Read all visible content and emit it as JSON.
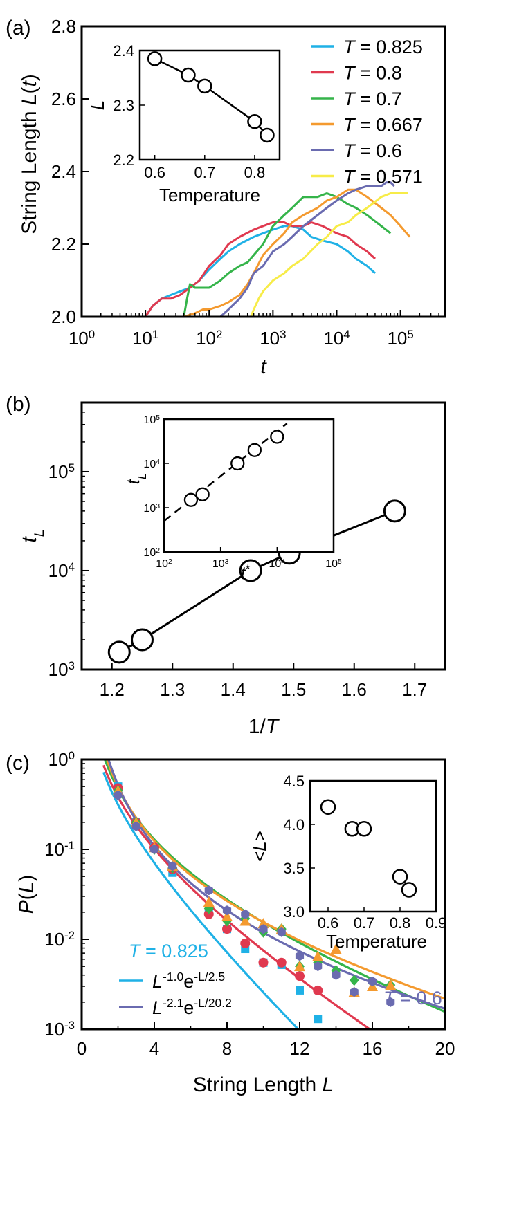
{
  "chart_data": [
    {
      "panel": "(a)",
      "type": "line",
      "xlabel": "t",
      "ylabel": "String Length L(t)",
      "xscale": "log",
      "xlim": [
        1,
        500000
      ],
      "ylim": [
        2.0,
        2.8
      ],
      "xticks": [
        {
          "v": 1,
          "base": "10",
          "exp": "0"
        },
        {
          "v": 10,
          "base": "10",
          "exp": "1"
        },
        {
          "v": 100,
          "base": "10",
          "exp": "2"
        },
        {
          "v": 1000,
          "base": "10",
          "exp": "3"
        },
        {
          "v": 10000,
          "base": "10",
          "exp": "4"
        },
        {
          "v": 100000,
          "base": "10",
          "exp": "5"
        }
      ],
      "yticks": [
        {
          "v": 2.0,
          "label": "2.0"
        },
        {
          "v": 2.2,
          "label": "2.2"
        },
        {
          "v": 2.4,
          "label": "2.4"
        },
        {
          "v": 2.6,
          "label": "2.6"
        },
        {
          "v": 2.8,
          "label": "2.8"
        }
      ],
      "legend": {
        "placement": "top-right",
        "prefix": "T",
        "eq": " = "
      },
      "series": [
        {
          "name": "0.825",
          "color": "#1fb1e6",
          "x": [
            1,
            10,
            13,
            18,
            25,
            35,
            50,
            70,
            100,
            150,
            200,
            300,
            500,
            700,
            1000,
            1500,
            2000,
            3000,
            4000,
            6000,
            10000,
            15000,
            20000,
            30000,
            40000
          ],
          "y": [
            2.0,
            2.0,
            2.03,
            2.05,
            2.06,
            2.07,
            2.08,
            2.1,
            2.13,
            2.16,
            2.18,
            2.2,
            2.22,
            2.23,
            2.24,
            2.25,
            2.25,
            2.24,
            2.22,
            2.21,
            2.2,
            2.18,
            2.16,
            2.14,
            2.12
          ]
        },
        {
          "name": "0.8",
          "color": "#e0394f",
          "x": [
            1,
            10,
            13,
            18,
            25,
            35,
            50,
            70,
            100,
            150,
            200,
            300,
            500,
            700,
            1000,
            1500,
            2000,
            3000,
            4000,
            6000,
            10000,
            15000,
            20000,
            30000,
            40000
          ],
          "y": [
            2.0,
            2.0,
            2.03,
            2.05,
            2.05,
            2.06,
            2.08,
            2.1,
            2.14,
            2.17,
            2.2,
            2.22,
            2.24,
            2.25,
            2.26,
            2.26,
            2.25,
            2.25,
            2.26,
            2.25,
            2.23,
            2.22,
            2.2,
            2.18,
            2.16
          ]
        },
        {
          "name": "0.7",
          "color": "#35b44a",
          "x": [
            1,
            40,
            45,
            50,
            60,
            80,
            100,
            150,
            200,
            300,
            400,
            500,
            700,
            1000,
            1500,
            2000,
            3000,
            5000,
            7000,
            10000,
            15000,
            20000,
            30000,
            50000,
            70000
          ],
          "y": [
            2.0,
            2.0,
            2.05,
            2.09,
            2.08,
            2.08,
            2.08,
            2.1,
            2.12,
            2.14,
            2.15,
            2.17,
            2.2,
            2.25,
            2.28,
            2.3,
            2.33,
            2.33,
            2.34,
            2.33,
            2.31,
            2.3,
            2.28,
            2.25,
            2.23
          ]
        },
        {
          "name": "0.667",
          "color": "#f49a2f",
          "x": [
            1,
            40,
            60,
            80,
            100,
            150,
            200,
            300,
            400,
            500,
            700,
            1000,
            1500,
            2000,
            3000,
            5000,
            7000,
            10000,
            15000,
            20000,
            30000,
            50000,
            70000,
            100000,
            140000
          ],
          "y": [
            2.0,
            2.0,
            2.01,
            2.02,
            2.02,
            2.03,
            2.04,
            2.06,
            2.09,
            2.12,
            2.17,
            2.2,
            2.23,
            2.26,
            2.28,
            2.3,
            2.32,
            2.33,
            2.35,
            2.35,
            2.33,
            2.3,
            2.28,
            2.25,
            2.22
          ]
        },
        {
          "name": "0.6",
          "color": "#6a6bb0",
          "x": [
            1,
            150,
            200,
            300,
            400,
            500,
            700,
            1000,
            1500,
            2000,
            3000,
            5000,
            7000,
            10000,
            15000,
            20000,
            30000,
            50000,
            60000,
            70000,
            80000
          ],
          "y": [
            2.0,
            2.0,
            2.02,
            2.05,
            2.08,
            2.12,
            2.14,
            2.18,
            2.2,
            2.22,
            2.25,
            2.28,
            2.3,
            2.32,
            2.34,
            2.35,
            2.36,
            2.36,
            2.37,
            2.37,
            2.36
          ]
        },
        {
          "name": "0.571",
          "color": "#f7ec48",
          "x": [
            1,
            450,
            500,
            600,
            700,
            1000,
            1500,
            2000,
            3000,
            5000,
            7000,
            10000,
            15000,
            20000,
            30000,
            50000,
            70000,
            100000,
            130000
          ],
          "y": [
            2.0,
            2.0,
            2.02,
            2.05,
            2.07,
            2.1,
            2.12,
            2.14,
            2.16,
            2.2,
            2.22,
            2.25,
            2.26,
            2.28,
            2.3,
            2.33,
            2.34,
            2.34,
            2.34
          ]
        }
      ],
      "inset": {
        "type": "scatter",
        "xlabel": "Temperature",
        "ylabel": "L",
        "xlim": [
          0.57,
          0.85
        ],
        "ylim": [
          2.2,
          2.4
        ],
        "xticks": [
          {
            "v": 0.6,
            "label": "0.6"
          },
          {
            "v": 0.7,
            "label": "0.7"
          },
          {
            "v": 0.8,
            "label": "0.8"
          }
        ],
        "yticks": [
          {
            "v": 2.2,
            "label": "2.2"
          },
          {
            "v": 2.3,
            "label": "2.3"
          },
          {
            "v": 2.4,
            "label": "2.4"
          }
        ],
        "x": [
          0.6,
          0.667,
          0.7,
          0.8,
          0.825
        ],
        "y": [
          2.385,
          2.355,
          2.335,
          2.27,
          2.245
        ]
      }
    },
    {
      "panel": "(b)",
      "type": "scatter",
      "xlabel": "1/T",
      "ylabel": "t_L",
      "yscale": "log",
      "xlim": [
        1.15,
        1.75
      ],
      "ylim": [
        1000,
        500000
      ],
      "xticks": [
        {
          "v": 1.2,
          "label": "1.2"
        },
        {
          "v": 1.3,
          "label": "1.3"
        },
        {
          "v": 1.4,
          "label": "1.4"
        },
        {
          "v": 1.5,
          "label": "1.5"
        },
        {
          "v": 1.6,
          "label": "1.6"
        },
        {
          "v": 1.7,
          "label": "1.7"
        }
      ],
      "yticks": [
        {
          "v": 1000,
          "base": "10",
          "exp": "3"
        },
        {
          "v": 10000,
          "base": "10",
          "exp": "4"
        },
        {
          "v": 100000,
          "base": "10",
          "exp": "5"
        }
      ],
      "x": [
        1.212,
        1.25,
        1.429,
        1.493,
        1.667
      ],
      "y": [
        1500,
        2000,
        10000,
        15000,
        40000
      ],
      "inset": {
        "type": "scatter",
        "xlabel": "t*",
        "ylabel": "t_L",
        "xscale": "log",
        "yscale": "log",
        "xlim": [
          100,
          100000
        ],
        "ylim": [
          100,
          100000
        ],
        "xticks": [
          {
            "v": 100,
            "base": "10",
            "exp": "2"
          },
          {
            "v": 1000,
            "base": "10",
            "exp": "3"
          },
          {
            "v": 10000,
            "base": "10",
            "exp": "4"
          },
          {
            "v": 100000,
            "base": "10",
            "exp": "5"
          }
        ],
        "yticks": [
          {
            "v": 100,
            "base": "10",
            "exp": "2"
          },
          {
            "v": 1000,
            "base": "10",
            "exp": "3"
          },
          {
            "v": 10000,
            "base": "10",
            "exp": "4"
          },
          {
            "v": 100000,
            "base": "10",
            "exp": "5"
          }
        ],
        "x": [
          300,
          480,
          2000,
          4000,
          10000
        ],
        "y": [
          1500,
          2000,
          10000,
          20000,
          40000
        ],
        "fit_x": [
          100,
          15000
        ],
        "fit_y": [
          500,
          80000
        ]
      }
    },
    {
      "panel": "(c)",
      "type": "scatter",
      "xlabel": "String Length L",
      "ylabel": "P(L)",
      "yscale": "log",
      "xlim": [
        0,
        20
      ],
      "ylim": [
        0.001,
        1
      ],
      "xticks": [
        {
          "v": 0,
          "label": "0"
        },
        {
          "v": 4,
          "label": "4"
        },
        {
          "v": 8,
          "label": "8"
        },
        {
          "v": 12,
          "label": "12"
        },
        {
          "v": 16,
          "label": "16"
        },
        {
          "v": 20,
          "label": "20"
        }
      ],
      "yticks": [
        {
          "v": 0.001,
          "base": "10",
          "exp": "-3"
        },
        {
          "v": 0.01,
          "base": "10",
          "exp": "-2"
        },
        {
          "v": 0.1,
          "base": "10",
          "exp": "-1"
        },
        {
          "v": 1,
          "base": "10",
          "exp": "0"
        }
      ],
      "series": [
        {
          "T": 0.825,
          "color": "#1fb1e6",
          "marker": "square",
          "x": [
            2,
            3,
            4,
            5,
            7,
            8,
            9,
            10,
            11,
            12,
            13
          ],
          "y": [
            0.5,
            0.2,
            0.105,
            0.055,
            0.02,
            0.013,
            0.0078,
            0.0055,
            0.0052,
            0.0027,
            0.0013
          ],
          "fit_a": 1.0,
          "fit_b": 2.5,
          "fit_c": 1.4
        },
        {
          "T": 0.8,
          "color": "#e0394f",
          "marker": "circle",
          "x": [
            2,
            3,
            4,
            5,
            7,
            8,
            9,
            10,
            11,
            12,
            13
          ],
          "y": [
            0.48,
            0.2,
            0.105,
            0.06,
            0.019,
            0.013,
            0.009,
            0.0055,
            0.0055,
            0.0039,
            0.0027
          ],
          "fit_a": 1.2,
          "fit_b": 4.0,
          "fit_c": 1.45
        },
        {
          "T": 0.7,
          "color": "#35b44a",
          "marker": "diamond",
          "x": [
            2,
            3,
            4,
            5,
            7,
            8,
            9,
            10,
            11,
            12,
            13,
            14,
            15,
            16,
            17
          ],
          "y": [
            0.45,
            0.2,
            0.1,
            0.062,
            0.022,
            0.016,
            0.017,
            0.012,
            0.013,
            0.005,
            0.0055,
            0.0045,
            0.0035,
            0.0033,
            0.0031
          ],
          "fit_a": 1.5,
          "fit_b": 8.0,
          "fit_c": 1.7
        },
        {
          "T": 0.667,
          "color": "#f49a2f",
          "marker": "triangle",
          "x": [
            2,
            3,
            4,
            5,
            7,
            8,
            9,
            10,
            11,
            12,
            13,
            14,
            15,
            16,
            17
          ],
          "y": [
            0.45,
            0.2,
            0.105,
            0.065,
            0.026,
            0.018,
            0.016,
            0.015,
            0.013,
            0.005,
            0.0065,
            0.0078,
            0.0026,
            0.003,
            0.0031
          ],
          "fit_a": 1.8,
          "fit_b": 14.0,
          "fit_c": 2.0
        },
        {
          "T": 0.6,
          "color": "#6a6bb0",
          "marker": "hexagon",
          "x": [
            2,
            3,
            4,
            5,
            7,
            8,
            9,
            10,
            11,
            12,
            13,
            14,
            15,
            16,
            17
          ],
          "y": [
            0.4,
            0.18,
            0.1,
            0.065,
            0.035,
            0.021,
            0.019,
            0.013,
            0.012,
            0.0065,
            0.005,
            0.004,
            0.0026,
            0.0034,
            0.002
          ],
          "fit_a": 2.1,
          "fit_b": 20.2,
          "fit_c": 2.45
        }
      ],
      "annotations": [
        {
          "text": "T = 0.825",
          "color": "#1fb1e6"
        },
        {
          "text": "T = 0.6",
          "color": "#6a6bb0"
        }
      ],
      "legend": [
        {
          "color": "#1fb1e6",
          "base": "L",
          "exp1": "-1.0",
          "mid": "e",
          "exp2": "-L/2.5"
        },
        {
          "color": "#6a6bb0",
          "base": "L",
          "exp1": "-2.1",
          "mid": "e",
          "exp2": "-L/20.2"
        }
      ],
      "inset": {
        "type": "scatter",
        "xlabel": "Temperature",
        "ylabel": "<L>",
        "xlim": [
          0.55,
          0.9
        ],
        "ylim": [
          3.0,
          4.5
        ],
        "xticks": [
          {
            "v": 0.6,
            "label": "0.6"
          },
          {
            "v": 0.7,
            "label": "0.7"
          },
          {
            "v": 0.8,
            "label": "0.8"
          },
          {
            "v": 0.9,
            "label": "0.9"
          }
        ],
        "yticks": [
          {
            "v": 3.0,
            "label": "3.0"
          },
          {
            "v": 3.5,
            "label": "3.5"
          },
          {
            "v": 4.0,
            "label": "4.0"
          },
          {
            "v": 4.5,
            "label": "4.5"
          }
        ],
        "x": [
          0.6,
          0.667,
          0.7,
          0.8,
          0.825
        ],
        "y": [
          4.2,
          3.95,
          3.95,
          3.4,
          3.25
        ]
      }
    }
  ]
}
